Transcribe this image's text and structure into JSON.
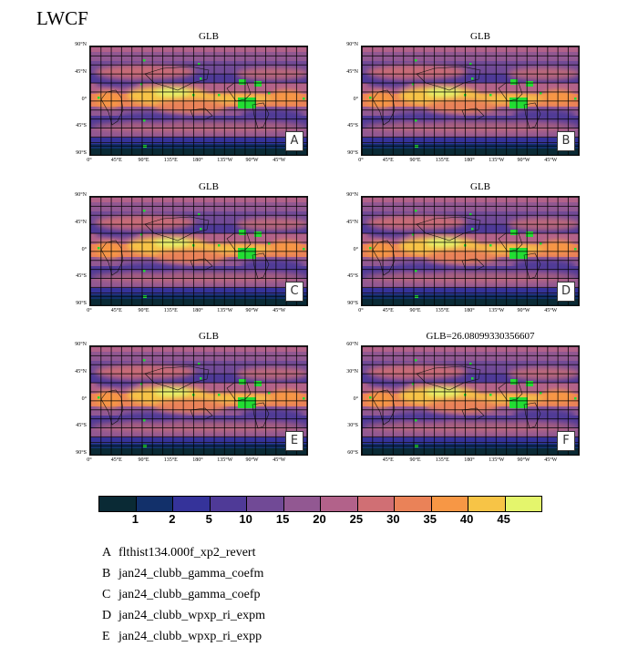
{
  "title": "LWCF",
  "panels": [
    {
      "title": "GLB",
      "label": "A",
      "lat_ticks": [
        "90°N",
        "45°N",
        "0°",
        "45°S",
        "90°S"
      ],
      "lon_ticks": [
        "0°",
        "45°E",
        "90°E",
        "135°E",
        "180°",
        "135°W",
        "90°W",
        "45°W"
      ]
    },
    {
      "title": "GLB",
      "label": "B",
      "lat_ticks": [
        "90°N",
        "45°N",
        "0°",
        "45°S",
        "90°S"
      ],
      "lon_ticks": [
        "0°",
        "45°E",
        "90°E",
        "135°E",
        "180°",
        "135°W",
        "90°W",
        "45°W"
      ]
    },
    {
      "title": "GLB",
      "label": "C",
      "lat_ticks": [
        "90°N",
        "45°N",
        "0°",
        "45°S",
        "90°S"
      ],
      "lon_ticks": [
        "0°",
        "45°E",
        "90°E",
        "135°E",
        "180°",
        "135°W",
        "90°W",
        "45°W"
      ]
    },
    {
      "title": "GLB",
      "label": "D",
      "lat_ticks": [
        "90°N",
        "45°N",
        "0°",
        "45°S",
        "90°S"
      ],
      "lon_ticks": [
        "0°",
        "45°E",
        "90°E",
        "135°E",
        "180°",
        "135°W",
        "90°W",
        "45°W"
      ]
    },
    {
      "title": "GLB",
      "label": "E",
      "lat_ticks": [
        "90°N",
        "45°N",
        "0°",
        "45°S",
        "90°S"
      ],
      "lon_ticks": [
        "0°",
        "45°E",
        "90°E",
        "135°E",
        "180°",
        "135°W",
        "90°W",
        "45°W"
      ]
    },
    {
      "title": "GLB=26.08099330356607",
      "label": "F",
      "lat_ticks": [
        "60°N",
        "30°N",
        "0°",
        "30°S",
        "60°S"
      ],
      "lon_ticks": [
        "45°E",
        "90°E",
        "135°E",
        "180°",
        "135°W",
        "90°W",
        "45°W"
      ]
    }
  ],
  "colorbar": {
    "colors": [
      "#0a2a35",
      "#12306a",
      "#35339a",
      "#4f3a97",
      "#714a96",
      "#925892",
      "#b2628a",
      "#d06f74",
      "#ea8258",
      "#f79745",
      "#f7c446",
      "#e4f56c"
    ],
    "labels": [
      "1",
      "2",
      "5",
      "10",
      "15",
      "20",
      "25",
      "30",
      "35",
      "40",
      "45"
    ]
  },
  "legend": [
    {
      "key": "A",
      "name": "flthist134.000f_xp2_revert"
    },
    {
      "key": "B",
      "name": "jan24_clubb_gamma_coefm"
    },
    {
      "key": "C",
      "name": "jan24_clubb_gamma_coefp"
    },
    {
      "key": "D",
      "name": "jan24_clubb_wpxp_ri_expm"
    },
    {
      "key": "E",
      "name": "jan24_clubb_wpxp_ri_expp"
    }
  ]
}
